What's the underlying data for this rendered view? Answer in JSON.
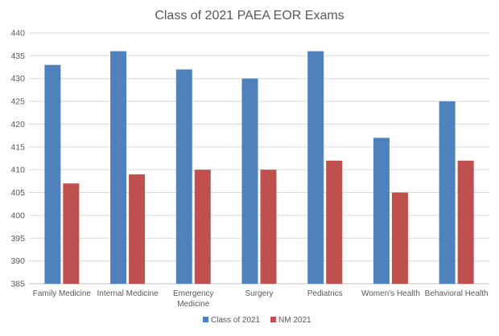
{
  "chart_data": {
    "type": "bar",
    "title": "Class of 2021 PAEA EOR Exams",
    "categories": [
      [
        "Family Medicine"
      ],
      [
        "Internal Medicine"
      ],
      [
        "Emergency",
        "Medicine"
      ],
      [
        "Surgery"
      ],
      [
        "Pediatrics"
      ],
      [
        "Women's Health"
      ],
      [
        "Behavioral Health"
      ]
    ],
    "series": [
      {
        "name": "Class of 2021",
        "color": "#4F81BD",
        "values": [
          433,
          436,
          432,
          430,
          436,
          417,
          425
        ]
      },
      {
        "name": "NM 2021",
        "color": "#C0504D",
        "values": [
          407,
          409,
          410,
          410,
          412,
          405,
          412
        ]
      }
    ],
    "ylim": [
      385,
      440
    ],
    "yticks": [
      385,
      390,
      395,
      400,
      405,
      410,
      415,
      420,
      425,
      430,
      435,
      440
    ],
    "grid": true,
    "legend_position": "bottom"
  }
}
